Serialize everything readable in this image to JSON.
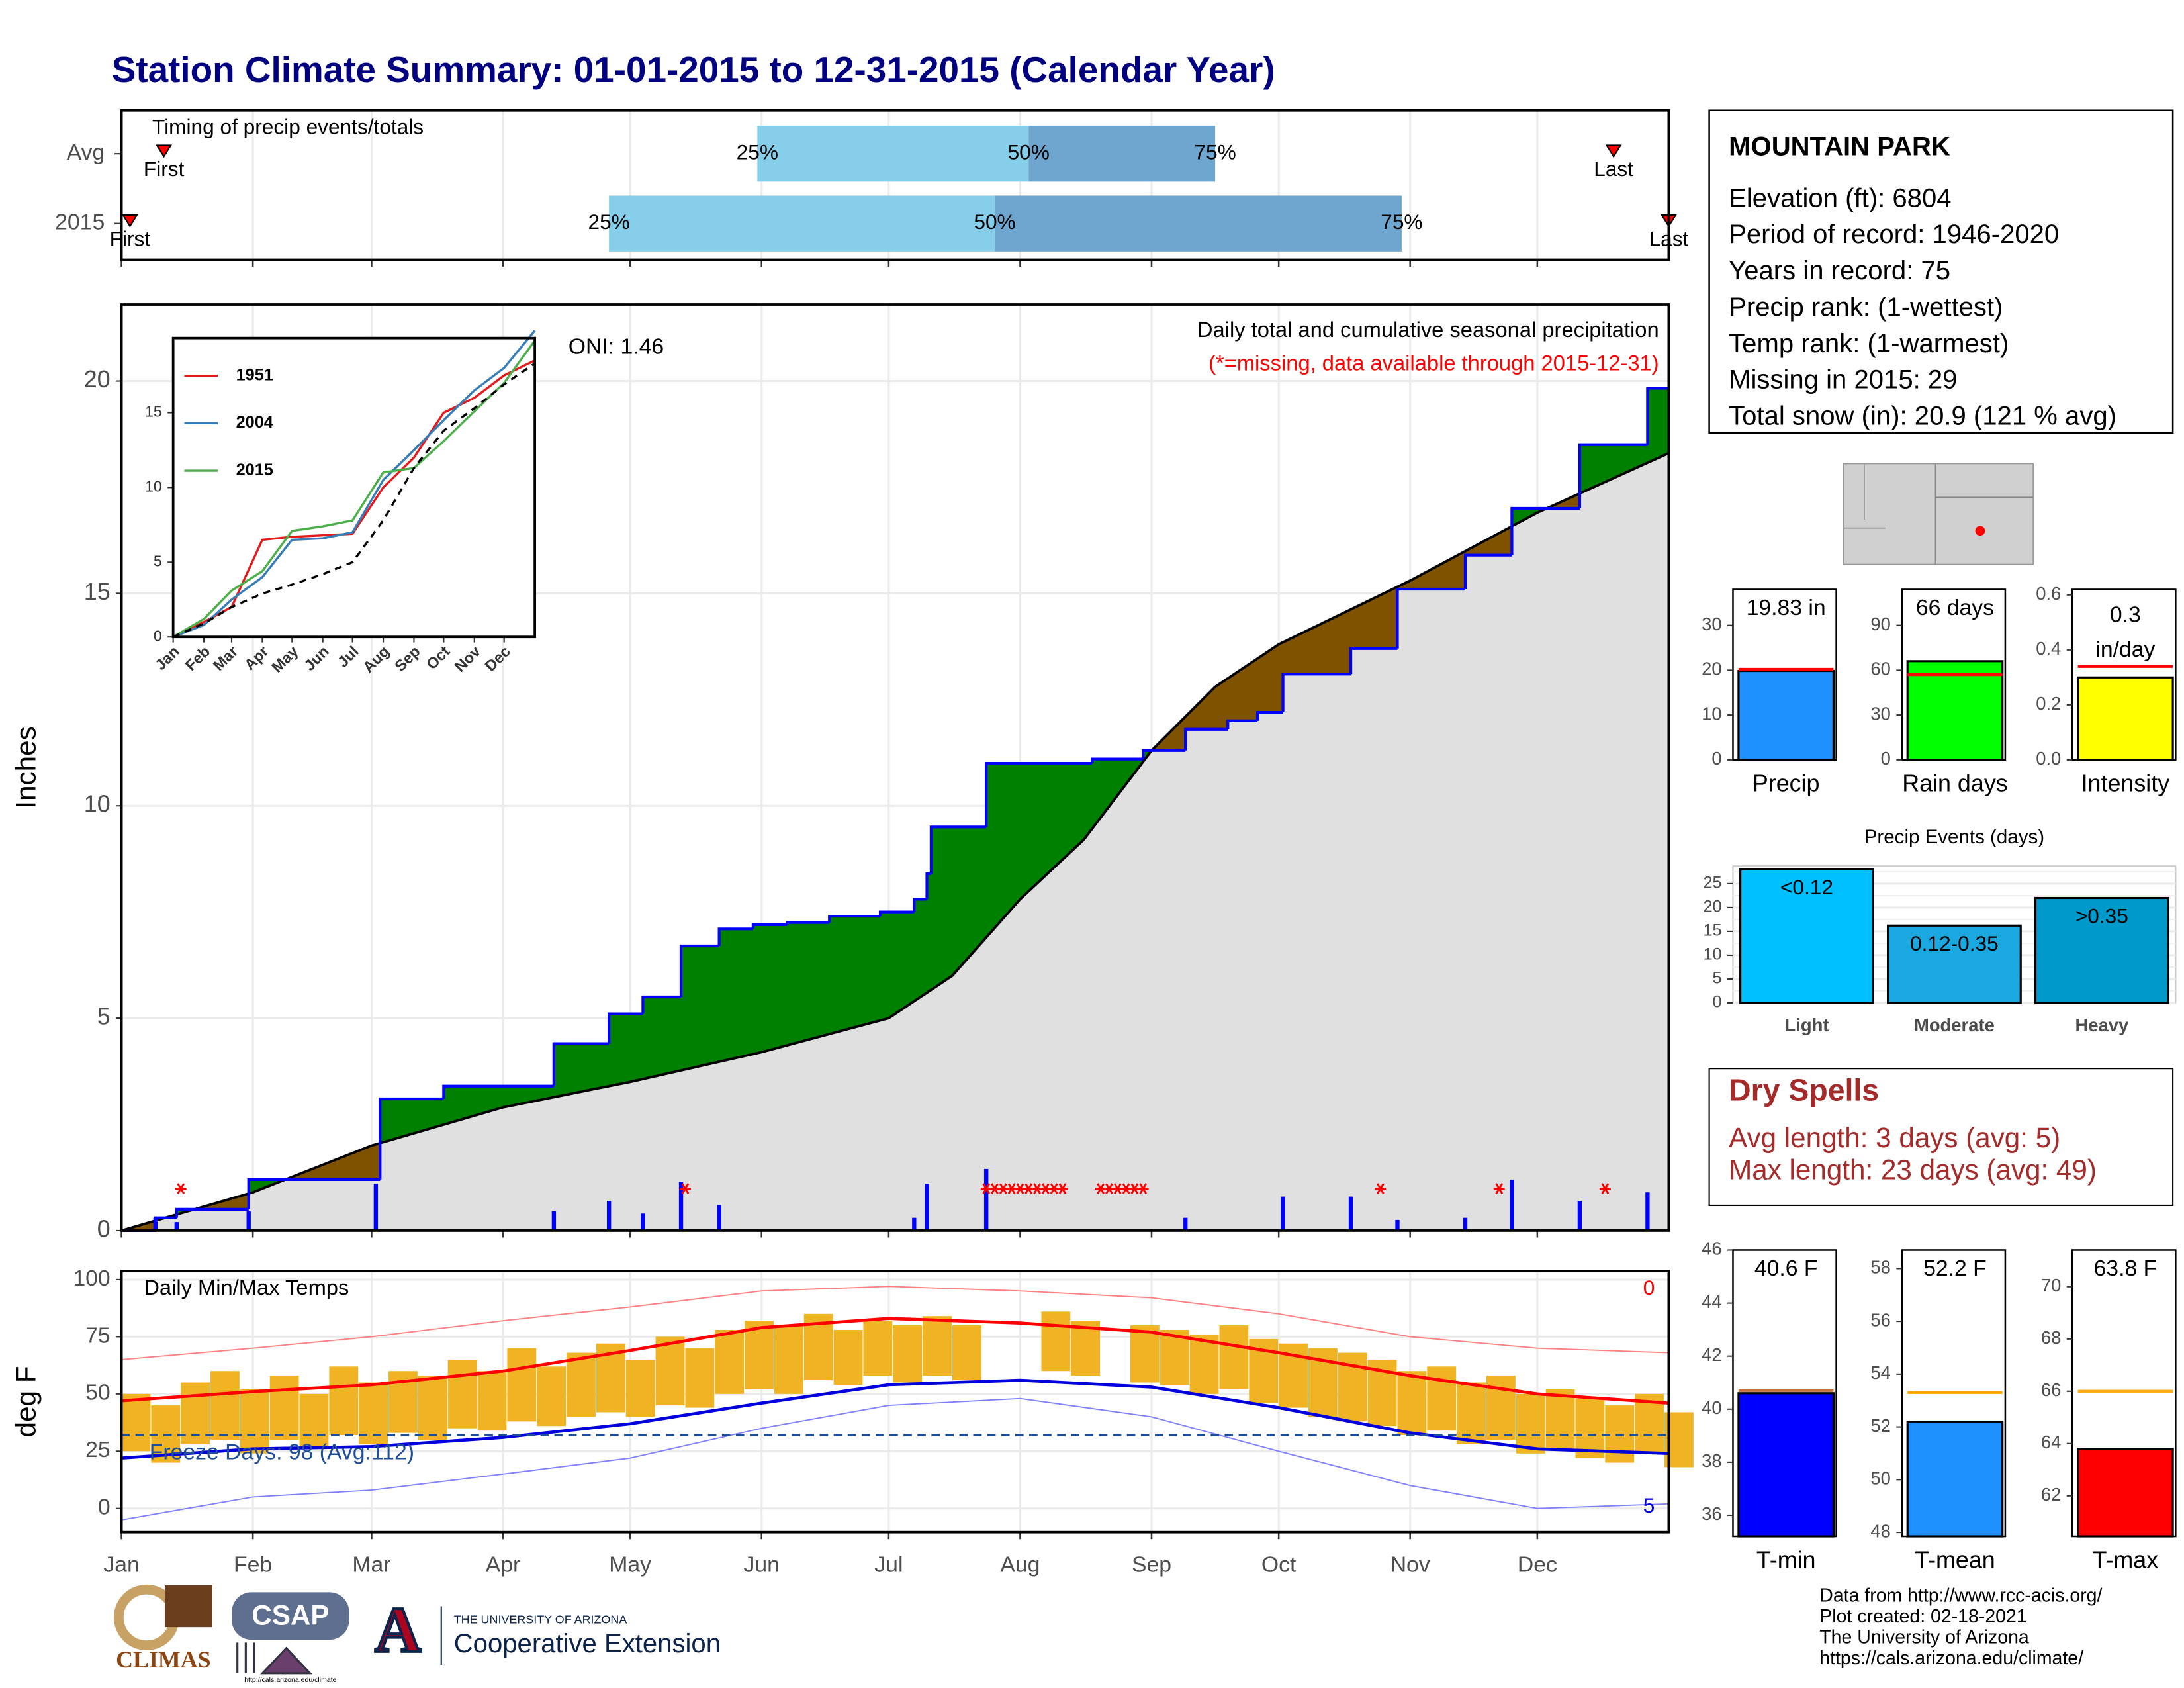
{
  "title": "Station Climate Summary: 01-01-2015 to 12-31-2015 (Calendar Year)",
  "station": {
    "name": "MOUNTAIN PARK",
    "lines": [
      "Elevation (ft): 6804",
      "Period of record: 1946-2020",
      "Years in record: 75",
      "Precip rank:  (1-wettest)",
      "Temp rank:  (1-warmest)",
      "Missing in 2015: 29",
      "Total snow (in): 20.9 (121 % avg)"
    ]
  },
  "dry_spells": {
    "title": "Dry Spells",
    "lines": [
      "Avg length: 3 days (avg: 5)",
      "Max length: 23 days (avg: 49)"
    ]
  },
  "footer": [
    "Data from http://www.rcc-acis.org/",
    "Plot created: 02-18-2021",
    "The University of Arizona",
    "https://cals.arizona.edu/climate/"
  ],
  "logos": {
    "climas": "CLIMAS",
    "csap": "CSAP",
    "csap_url": "http://cals.arizona.edu/climate",
    "ua_letter": "A",
    "ua_name": "THE UNIVERSITY OF ARIZONA",
    "extension": "Cooperative Extension"
  },
  "chart_data": [
    {
      "type": "timing",
      "title": "Timing of precip events/totals",
      "xlim": [
        0,
        365
      ],
      "xticks": [
        0,
        31,
        59,
        90,
        120,
        151,
        181,
        212,
        243,
        273,
        304,
        334
      ],
      "labels": {
        "first": "First",
        "q25": "25%",
        "q50": "50%",
        "q75": "75%",
        "last": "Last"
      },
      "light_color": "#87ceeb",
      "dark_color": "#6fa6cf",
      "marker_color": "#ff0000",
      "rows": [
        {
          "label": "Avg",
          "first": 10,
          "q25": 150,
          "q50": 214,
          "q75": 258,
          "last": 352
        },
        {
          "label": "2015",
          "first": 2,
          "q25": 115,
          "q50": 206,
          "q75": 302,
          "last": 365
        }
      ]
    },
    {
      "type": "area",
      "ylabel": "Inches",
      "xlim": [
        0,
        365
      ],
      "ylim": [
        0,
        21.8
      ],
      "yticks": [
        0,
        5,
        10,
        15,
        20
      ],
      "xticks": [
        0,
        31,
        59,
        90,
        120,
        151,
        181,
        212,
        243,
        273,
        304,
        334
      ],
      "grid": true,
      "oni": "ONI: 1.46",
      "description": "Daily total and cumulative seasonal precipitation",
      "missing_note": "(*=missing, data available through 2015-12-31)",
      "above_color": "#008000",
      "below_color": "#7f5200",
      "area_color": "#e0e0e0",
      "missing_color": "#ff0000",
      "series": [
        {
          "color": "#0000ff",
          "x": [
            0,
            8,
            13,
            30,
            61,
            76,
            102,
            115,
            123,
            132,
            141,
            149,
            157,
            167,
            179,
            187,
            190,
            191,
            204,
            229,
            241,
            251,
            261,
            268,
            274,
            290,
            301,
            317,
            328,
            344,
            360
          ],
          "values": [
            0,
            0.3,
            0.5,
            1.2,
            3.1,
            3.4,
            4.4,
            5.1,
            5.5,
            6.7,
            7.1,
            7.2,
            7.25,
            7.4,
            7.5,
            7.8,
            8.4,
            9.5,
            11.0,
            11.1,
            11.3,
            11.8,
            12.0,
            12.2,
            13.1,
            13.7,
            15.1,
            15.9,
            17.0,
            18.5,
            19.83
          ]
        },
        {
          "color": "#000000",
          "x": [
            0,
            31,
            59,
            90,
            120,
            151,
            181,
            196,
            212,
            227,
            243,
            258,
            273,
            304,
            334,
            365
          ],
          "values": [
            0,
            0.9,
            2.0,
            2.9,
            3.5,
            4.2,
            5.0,
            6.0,
            7.8,
            9.2,
            11.3,
            12.8,
            13.8,
            15.3,
            16.9,
            18.3
          ]
        }
      ],
      "daily": {
        "color": "#0000ff",
        "x": [
          8,
          13,
          30,
          60,
          102,
          115,
          123,
          132,
          141,
          187,
          190,
          204,
          251,
          274,
          290,
          301,
          317,
          328,
          344,
          360
        ],
        "values": [
          0.3,
          0.2,
          0.45,
          1.1,
          0.45,
          0.7,
          0.4,
          1.15,
          0.6,
          0.3,
          1.1,
          1.45,
          0.3,
          0.8,
          0.8,
          0.25,
          0.3,
          1.2,
          0.7,
          0.9
        ]
      },
      "missing_x": [
        14,
        133,
        204,
        206,
        208,
        210,
        212,
        214,
        216,
        218,
        220,
        222,
        231,
        233,
        235,
        237,
        239,
        241,
        297,
        325,
        350
      ]
    },
    {
      "type": "line",
      "xlim": [
        0,
        365
      ],
      "ylim": [
        0,
        20
      ],
      "yticks": [
        0,
        5,
        10,
        15
      ],
      "xticks": [
        {
          "value": 0,
          "label": "Jan"
        },
        {
          "value": 31,
          "label": "Feb"
        },
        {
          "value": 59,
          "label": "Mar"
        },
        {
          "value": 90,
          "label": "Apr"
        },
        {
          "value": 120,
          "label": "May"
        },
        {
          "value": 151,
          "label": "Jun"
        },
        {
          "value": 181,
          "label": "Jul"
        },
        {
          "value": 212,
          "label": "Aug"
        },
        {
          "value": 243,
          "label": "Sep"
        },
        {
          "value": 273,
          "label": "Oct"
        },
        {
          "value": 304,
          "label": "Nov"
        },
        {
          "value": 334,
          "label": "Dec"
        }
      ],
      "x": [
        0,
        31,
        59,
        90,
        120,
        151,
        181,
        212,
        243,
        273,
        304,
        334,
        365
      ],
      "series": [
        {
          "name": "1951",
          "color": "#e41a1c",
          "values": [
            0,
            1.0,
            2.0,
            6.5,
            6.7,
            6.8,
            6.9,
            10.0,
            12.0,
            15.0,
            16.0,
            17.5,
            18.5
          ]
        },
        {
          "name": "2004",
          "color": "#377eb8",
          "values": [
            0,
            0.8,
            2.5,
            4.0,
            6.5,
            6.6,
            7.0,
            10.5,
            12.5,
            14.5,
            16.5,
            18.0,
            20.5
          ]
        },
        {
          "name": "2015",
          "color": "#4daf4a",
          "values": [
            0,
            1.2,
            3.1,
            4.4,
            7.1,
            7.4,
            7.8,
            11.0,
            11.3,
            13.1,
            15.1,
            17.0,
            19.83
          ]
        },
        {
          "color": "#000000",
          "dash": true,
          "values": [
            0,
            0.9,
            2.0,
            2.9,
            3.5,
            4.2,
            5.0,
            7.8,
            11.3,
            13.8,
            15.3,
            16.9,
            18.3
          ]
        }
      ]
    },
    {
      "type": "bar",
      "categories": [
        "Precip"
      ],
      "values": [
        19.83
      ],
      "value_labels": [
        "19.83 in"
      ],
      "avg": 20.2,
      "avg_color": "#ff0000",
      "color": "#1e90ff",
      "ylim": [
        0,
        38
      ],
      "yticks": [
        0,
        10,
        20,
        30
      ]
    },
    {
      "type": "bar",
      "categories": [
        "Rain days"
      ],
      "values": [
        66
      ],
      "value_labels": [
        "66 days"
      ],
      "avg": 57,
      "avg_color": "#ff0000",
      "color": "#00ff00",
      "ylim": [
        0,
        114
      ],
      "yticks": [
        0,
        30,
        60,
        90
      ]
    },
    {
      "type": "bar",
      "categories": [
        "Intensity"
      ],
      "values": [
        0.3
      ],
      "value_labels": [
        "0.3"
      ],
      "unit": "in/day",
      "avg": 0.34,
      "avg_color": "#ff0000",
      "color": "#ffff00",
      "ylim": [
        0,
        0.62
      ],
      "yticks": [
        {
          "value": 0,
          "label": "0.0"
        },
        0.2,
        0.4,
        0.6
      ]
    },
    {
      "type": "bar",
      "title": "Precip Events (days)",
      "categories": [
        "Light",
        "Moderate",
        "Heavy"
      ],
      "values": [
        28,
        16.2,
        22
      ],
      "bar_labels": [
        "<0.12",
        "0.12-0.35",
        ">0.35"
      ],
      "colors": [
        "#00bfff",
        "#1ba8e0",
        "#0099cc"
      ],
      "ylim": [
        0,
        28.7
      ],
      "yticks": [
        0,
        5,
        10,
        15,
        20,
        25
      ],
      "grid": true
    },
    {
      "type": "temp",
      "title": "Daily Min/Max Temps",
      "ylabel": "deg F",
      "xlim": [
        0,
        365
      ],
      "ylim": [
        -10.4,
        103.7
      ],
      "yticks": [
        0,
        25,
        50,
        75,
        100
      ],
      "grid": true,
      "xticks": [
        {
          "value": 0,
          "label": "Jan"
        },
        {
          "value": 31,
          "label": "Feb"
        },
        {
          "value": 59,
          "label": "Mar"
        },
        {
          "value": 90,
          "label": "Apr"
        },
        {
          "value": 120,
          "label": "May"
        },
        {
          "value": 151,
          "label": "Jun"
        },
        {
          "value": 181,
          "label": "Jul"
        },
        {
          "value": 212,
          "label": "Aug"
        },
        {
          "value": 243,
          "label": "Sep"
        },
        {
          "value": 273,
          "label": "Oct"
        },
        {
          "value": 304,
          "label": "Nov"
        },
        {
          "value": 334,
          "label": "Dec"
        }
      ],
      "freeze": 32,
      "freeze_label": "Freeze Days: 98 (Avg:112)",
      "freeze_color": "#1f4e99",
      "hot_count": 0,
      "cold_count": 5,
      "bar_color": "#f0b323",
      "x": [
        0,
        7,
        14,
        21,
        28,
        35,
        42,
        49,
        56,
        63,
        70,
        77,
        84,
        91,
        98,
        105,
        112,
        119,
        126,
        133,
        140,
        147,
        154,
        161,
        168,
        175,
        182,
        189,
        196,
        203,
        210,
        217,
        224,
        231,
        238,
        245,
        252,
        259,
        266,
        273,
        280,
        287,
        294,
        301,
        308,
        315,
        322,
        329,
        336,
        343,
        350,
        357,
        364
      ],
      "daily_max": [
        50,
        45,
        55,
        60,
        52,
        58,
        50,
        62,
        55,
        60,
        58,
        65,
        60,
        70,
        62,
        68,
        72,
        65,
        75,
        70,
        78,
        82,
        80,
        85,
        78,
        82,
        80,
        84,
        80,
        null,
        null,
        86,
        82,
        null,
        80,
        78,
        76,
        80,
        74,
        72,
        70,
        68,
        65,
        60,
        62,
        55,
        58,
        50,
        52,
        48,
        45,
        50,
        42
      ],
      "daily_min": [
        25,
        20,
        28,
        30,
        24,
        30,
        26,
        32,
        28,
        33,
        30,
        35,
        34,
        38,
        36,
        40,
        42,
        40,
        45,
        44,
        50,
        52,
        50,
        56,
        54,
        58,
        55,
        58,
        56,
        null,
        null,
        60,
        58,
        null,
        55,
        54,
        50,
        52,
        46,
        44,
        40,
        38,
        36,
        32,
        34,
        28,
        30,
        24,
        26,
        22,
        20,
        24,
        18
      ],
      "avg_x": [
        0,
        31,
        59,
        90,
        120,
        151,
        181,
        212,
        243,
        273,
        304,
        334,
        365
      ],
      "avg_max": [
        47,
        51,
        54,
        60,
        69,
        79,
        83,
        81,
        77,
        68,
        58,
        50,
        46
      ],
      "avg_min": [
        22,
        26,
        27,
        31,
        37,
        46,
        54,
        56,
        53,
        44,
        33,
        26,
        24
      ],
      "record_max": [
        65,
        70,
        75,
        82,
        88,
        95,
        97,
        95,
        92,
        85,
        75,
        70,
        68
      ],
      "record_min": [
        -5,
        5,
        8,
        15,
        22,
        35,
        45,
        48,
        40,
        25,
        10,
        0,
        2
      ],
      "avg_max_color": "#ff0000",
      "avg_min_color": "#0000dd",
      "record_max_color": "#ff8080",
      "record_min_color": "#8080ff"
    },
    {
      "type": "bar",
      "categories": [
        "T-min"
      ],
      "values": [
        40.6
      ],
      "value_labels": [
        "40.6 F"
      ],
      "avg": 40.7,
      "avg_color": "#c8713a",
      "color": "#0000ff",
      "ylim": [
        35.2,
        46
      ],
      "yticks": [
        36,
        38,
        40,
        42,
        44,
        46
      ]
    },
    {
      "type": "bar",
      "categories": [
        "T-mean"
      ],
      "values": [
        52.2
      ],
      "value_labels": [
        "52.2 F"
      ],
      "avg": 53.3,
      "avg_color": "#ffa500",
      "color": "#1e90ff",
      "ylim": [
        47.85,
        58.7
      ],
      "yticks": [
        48,
        50,
        52,
        54,
        56,
        58
      ]
    },
    {
      "type": "bar",
      "categories": [
        "T-max"
      ],
      "values": [
        63.8
      ],
      "value_labels": [
        "63.8 F"
      ],
      "avg": 66,
      "avg_color": "#ffa500",
      "color": "#ff0000",
      "ylim": [
        60.45,
        71.4
      ],
      "yticks": [
        62,
        64,
        66,
        68,
        70
      ]
    }
  ]
}
